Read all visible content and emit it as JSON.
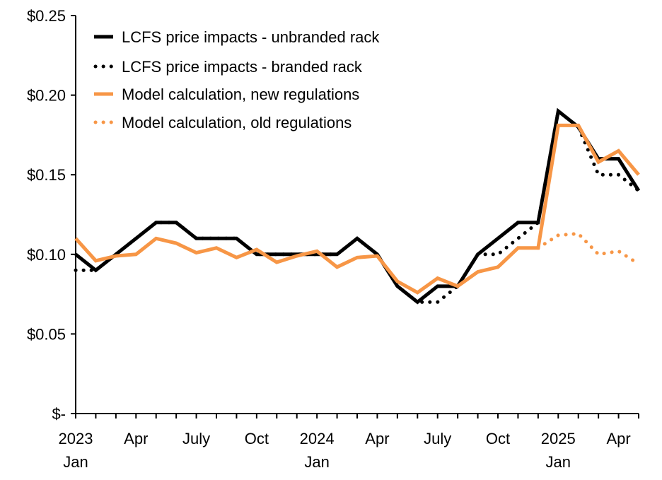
{
  "chart_data": {
    "type": "line",
    "title": "",
    "xlabel": "",
    "ylabel": "",
    "ylim": [
      0,
      0.25
    ],
    "yticks": [
      0,
      0.05,
      0.1,
      0.15,
      0.2,
      0.25
    ],
    "ytick_labels": [
      "$-",
      "$0.05",
      "$0.10",
      "$0.15",
      "$0.20",
      "$0.25"
    ],
    "x": [
      "2023-01",
      "2023-02",
      "2023-03",
      "2023-04",
      "2023-05",
      "2023-06",
      "2023-07",
      "2023-08",
      "2023-09",
      "2023-10",
      "2023-11",
      "2023-12",
      "2024-01",
      "2024-02",
      "2024-03",
      "2024-04",
      "2024-05",
      "2024-06",
      "2024-07",
      "2024-08",
      "2024-09",
      "2024-10",
      "2024-11",
      "2024-12",
      "2025-01",
      "2025-02",
      "2025-03",
      "2025-04",
      "2025-05"
    ],
    "xticks": [
      {
        "index": 0,
        "label": "2023",
        "sub": "Jan"
      },
      {
        "index": 3,
        "label": "Apr",
        "sub": ""
      },
      {
        "index": 6,
        "label": "July",
        "sub": ""
      },
      {
        "index": 9,
        "label": "Oct",
        "sub": ""
      },
      {
        "index": 12,
        "label": "2024",
        "sub": "Jan"
      },
      {
        "index": 15,
        "label": "Apr",
        "sub": ""
      },
      {
        "index": 18,
        "label": "July",
        "sub": ""
      },
      {
        "index": 21,
        "label": "Oct",
        "sub": ""
      },
      {
        "index": 24,
        "label": "2025",
        "sub": "Jan"
      },
      {
        "index": 27,
        "label": "Apr",
        "sub": ""
      }
    ],
    "legend_position": "top-left",
    "series": [
      {
        "name": "LCFS price impacts - unbranded rack",
        "color": "#000000",
        "style": "solid",
        "values": [
          0.1,
          0.09,
          0.1,
          0.11,
          0.12,
          0.12,
          0.11,
          0.11,
          0.11,
          0.1,
          0.1,
          0.1,
          0.1,
          0.1,
          0.11,
          0.1,
          0.08,
          0.07,
          0.08,
          0.08,
          0.1,
          0.11,
          0.12,
          0.12,
          0.19,
          0.18,
          0.16,
          0.16,
          0.14
        ]
      },
      {
        "name": "LCFS price impacts - branded rack",
        "color": "#000000",
        "style": "dotted",
        "values": [
          0.09,
          0.09,
          0.1,
          0.11,
          0.12,
          0.12,
          0.11,
          0.11,
          0.11,
          0.1,
          0.1,
          0.1,
          0.1,
          0.1,
          0.11,
          0.1,
          0.08,
          0.07,
          0.07,
          0.08,
          0.1,
          0.1,
          0.11,
          0.12,
          0.19,
          0.18,
          0.15,
          0.15,
          0.14
        ]
      },
      {
        "name": "Model calculation, new regulations",
        "color": "#F79646",
        "style": "solid",
        "values": [
          0.11,
          0.096,
          0.099,
          0.1,
          0.11,
          0.107,
          0.101,
          0.104,
          0.098,
          0.103,
          0.095,
          0.099,
          0.102,
          0.092,
          0.098,
          0.099,
          0.083,
          0.076,
          0.085,
          0.08,
          0.089,
          0.092,
          0.104,
          0.104,
          0.181,
          0.181,
          0.158,
          0.165,
          0.15
        ]
      },
      {
        "name": "Model calculation, old regulations",
        "color": "#F79646",
        "style": "dotted",
        "values": [
          null,
          null,
          null,
          null,
          null,
          null,
          null,
          null,
          null,
          null,
          null,
          null,
          null,
          null,
          null,
          null,
          null,
          null,
          null,
          null,
          null,
          null,
          null,
          0.104,
          0.112,
          0.113,
          0.1,
          0.102,
          0.094
        ]
      }
    ]
  }
}
